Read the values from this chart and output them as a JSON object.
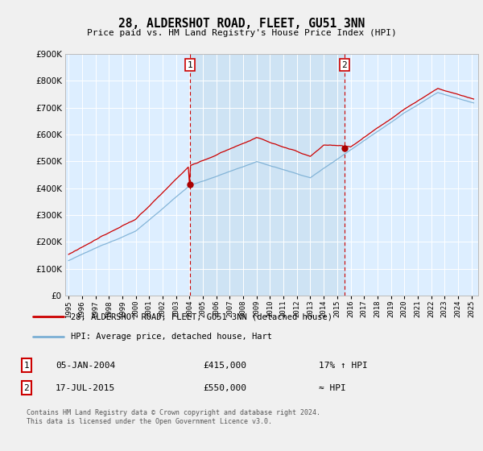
{
  "title": "28, ALDERSHOT ROAD, FLEET, GU51 3NN",
  "subtitle": "Price paid vs. HM Land Registry's House Price Index (HPI)",
  "ylim": [
    0,
    900000
  ],
  "xlim_start": 1994.75,
  "xlim_end": 2025.5,
  "marker1_x": 2004.04,
  "marker1_y": 415000,
  "marker2_x": 2015.54,
  "marker2_y": 550000,
  "legend_line1": "28, ALDERSHOT ROAD, FLEET, GU51 3NN (detached house)",
  "legend_line2": "HPI: Average price, detached house, Hart",
  "footnote": "Contains HM Land Registry data © Crown copyright and database right 2024.\nThis data is licensed under the Open Government Licence v3.0.",
  "line_color_red": "#cc0000",
  "line_color_blue": "#7bafd4",
  "marker_color": "#aa0000",
  "vline_color": "#cc0000",
  "plot_bg_color": "#ddeeff",
  "fig_bg_color": "#f0f0f0",
  "grid_color": "#ffffff",
  "shade_color": "#c8dff0"
}
